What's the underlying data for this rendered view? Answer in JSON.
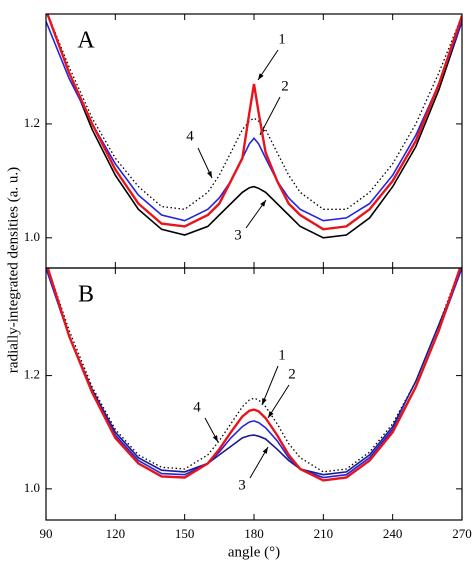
{
  "chart_data": [
    {
      "type": "line",
      "panel_label": "A",
      "ylabel": "radially-integrated densities (a. u.)",
      "x": [
        90,
        100,
        110,
        120,
        130,
        140,
        150,
        160,
        165,
        170,
        175,
        178,
        180,
        182,
        185,
        190,
        195,
        200,
        210,
        220,
        230,
        240,
        250,
        260,
        270
      ],
      "xlim": [
        90,
        270
      ],
      "ylim": [
        0.947,
        1.393
      ],
      "yticks": [
        {
          "value": 1.0,
          "label": "1.0"
        },
        1.2
      ],
      "series": [
        {
          "name": "1",
          "color": "#e8141c",
          "dashed": false,
          "values": [
            1.4,
            1.29,
            1.2,
            1.12,
            1.06,
            1.025,
            1.02,
            1.04,
            1.06,
            1.1,
            1.14,
            1.22,
            1.27,
            1.22,
            1.15,
            1.1,
            1.06,
            1.04,
            1.015,
            1.02,
            1.05,
            1.1,
            1.17,
            1.27,
            1.39
          ]
        },
        {
          "name": "2",
          "color": "#2424e0",
          "dashed": false,
          "values": [
            1.38,
            1.28,
            1.2,
            1.13,
            1.075,
            1.04,
            1.03,
            1.05,
            1.07,
            1.1,
            1.14,
            1.165,
            1.175,
            1.165,
            1.14,
            1.1,
            1.07,
            1.05,
            1.03,
            1.035,
            1.06,
            1.11,
            1.18,
            1.27,
            1.38
          ]
        },
        {
          "name": "3",
          "color": "#000000",
          "dashed": false,
          "values": [
            1.4,
            1.29,
            1.19,
            1.11,
            1.05,
            1.015,
            1.005,
            1.02,
            1.04,
            1.06,
            1.08,
            1.088,
            1.09,
            1.087,
            1.08,
            1.06,
            1.04,
            1.02,
            1.0,
            1.005,
            1.035,
            1.09,
            1.16,
            1.26,
            1.38
          ]
        },
        {
          "name": "4",
          "color": "#000000",
          "dashed": true,
          "values": [
            1.4,
            1.3,
            1.21,
            1.14,
            1.09,
            1.055,
            1.05,
            1.08,
            1.11,
            1.15,
            1.19,
            1.205,
            1.21,
            1.205,
            1.19,
            1.15,
            1.11,
            1.08,
            1.05,
            1.05,
            1.08,
            1.13,
            1.2,
            1.29,
            1.39
          ]
        }
      ]
    },
    {
      "type": "line",
      "panel_label": "B",
      "xlabel": "angle (°)",
      "x": [
        90,
        100,
        110,
        120,
        130,
        140,
        150,
        160,
        165,
        170,
        175,
        178,
        180,
        182,
        185,
        190,
        195,
        200,
        210,
        220,
        230,
        240,
        250,
        260,
        270
      ],
      "xlim": [
        90,
        270
      ],
      "ylim": [
        0.945,
        1.39
      ],
      "xticks": [
        90,
        120,
        150,
        180,
        210,
        240,
        270
      ],
      "yticks": [
        {
          "value": 1.0,
          "label": "1.0"
        },
        1.2
      ],
      "series": [
        {
          "name": "1",
          "color": "#e8141c",
          "dashed": false,
          "values": [
            1.4,
            1.27,
            1.17,
            1.09,
            1.045,
            1.022,
            1.02,
            1.045,
            1.07,
            1.1,
            1.128,
            1.138,
            1.14,
            1.137,
            1.125,
            1.095,
            1.06,
            1.035,
            1.015,
            1.02,
            1.05,
            1.1,
            1.18,
            1.28,
            1.4
          ]
        },
        {
          "name": "2",
          "color": "#2424e0",
          "dashed": false,
          "values": [
            1.39,
            1.27,
            1.17,
            1.095,
            1.05,
            1.027,
            1.025,
            1.045,
            1.065,
            1.09,
            1.11,
            1.118,
            1.12,
            1.117,
            1.108,
            1.085,
            1.055,
            1.035,
            1.02,
            1.025,
            1.055,
            1.105,
            1.18,
            1.28,
            1.39
          ]
        },
        {
          "name": "3",
          "color": "#1a1a8c",
          "dashed": false,
          "values": [
            1.39,
            1.27,
            1.175,
            1.1,
            1.055,
            1.033,
            1.03,
            1.045,
            1.06,
            1.075,
            1.09,
            1.094,
            1.095,
            1.093,
            1.088,
            1.07,
            1.05,
            1.035,
            1.025,
            1.03,
            1.06,
            1.11,
            1.19,
            1.29,
            1.39
          ]
        },
        {
          "name": "4",
          "color": "#000000",
          "dashed": true,
          "values": [
            1.4,
            1.28,
            1.18,
            1.105,
            1.06,
            1.038,
            1.035,
            1.06,
            1.085,
            1.115,
            1.145,
            1.157,
            1.16,
            1.157,
            1.145,
            1.115,
            1.08,
            1.055,
            1.03,
            1.035,
            1.065,
            1.115,
            1.19,
            1.29,
            1.4
          ]
        }
      ]
    }
  ]
}
